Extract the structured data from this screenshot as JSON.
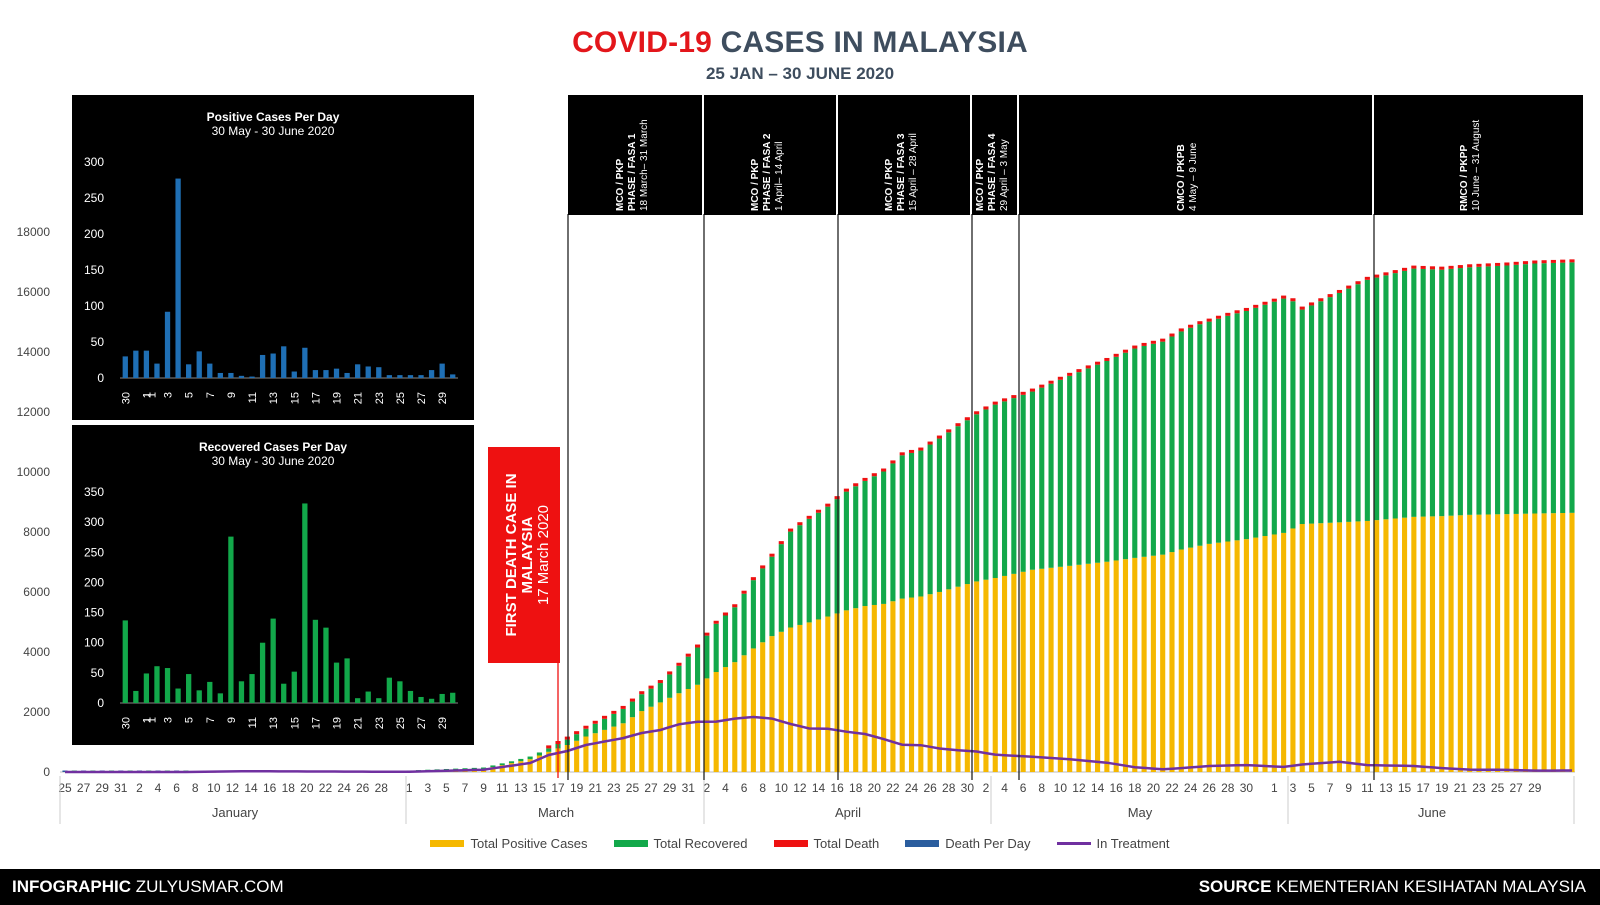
{
  "title": {
    "part1": "COVID-19",
    "part2": " CASES IN MALAYSIA",
    "subtitle": "25 JAN – 30 JUNE 2020"
  },
  "colors": {
    "positive": "#f5b800",
    "recovered": "#12a84a",
    "death": "#ee1111",
    "death_per_day": "#2a5d9e",
    "treatment": "#7030a0",
    "title_red": "#e3161b",
    "title_dark": "#3e4d5e"
  },
  "chart_data": {
    "type": "bar",
    "title": "COVID-19 CASES IN MALAYSIA",
    "subtitle": "25 JAN – 30 JUNE 2020",
    "ylim": [
      0,
      18000
    ],
    "y_ticks": [
      "0",
      "2000",
      "4000",
      "6000",
      "8000",
      "10000",
      "12000",
      "14000",
      "16000",
      "18000"
    ],
    "x_tick_labels": {
      "jan": [
        "25",
        "27",
        "29",
        "31",
        "2",
        "4",
        "6",
        "8",
        "10",
        "12",
        "14",
        "16",
        "18",
        "20",
        "22",
        "24",
        "26",
        "28"
      ],
      "mar": [
        "1",
        "3",
        "5",
        "7",
        "9",
        "11",
        "13",
        "15",
        "17",
        "19",
        "21",
        "23",
        "25",
        "27",
        "29",
        "31"
      ],
      "apr": [
        "2",
        "4",
        "6",
        "8",
        "10",
        "12",
        "14",
        "16",
        "18",
        "20",
        "22",
        "24",
        "26",
        "28",
        "30"
      ],
      "may": [
        "2",
        "4",
        "6",
        "8",
        "10",
        "12",
        "14",
        "16",
        "18",
        "20",
        "22",
        "24",
        "26",
        "28",
        "30"
      ],
      "jun": [
        "1",
        "3",
        "5",
        "7",
        "9",
        "11",
        "13",
        "15",
        "17",
        "19",
        "21",
        "23",
        "25",
        "27",
        "29"
      ]
    },
    "months": [
      "January",
      "March",
      "April",
      "May",
      "June"
    ],
    "series_names": [
      "Total Positive Cases",
      "Total Recovered",
      "Total Death",
      "Death Per Day",
      "In Treatment"
    ],
    "cumulative_keypoints": {
      "mar_start_index": 37,
      "positive": [
        [
          0,
          0
        ],
        [
          13,
          0
        ],
        [
          19,
          25
        ],
        [
          37,
          29
        ],
        [
          45,
          100
        ],
        [
          50,
          428
        ],
        [
          52,
          673
        ],
        [
          54,
          900
        ],
        [
          56,
          1183
        ],
        [
          60,
          1624
        ],
        [
          62,
          2031
        ],
        [
          64,
          2320
        ],
        [
          66,
          2626
        ],
        [
          68,
          2908
        ],
        [
          70,
          3333
        ],
        [
          72,
          3662
        ],
        [
          74,
          4119
        ],
        [
          76,
          4530
        ],
        [
          78,
          4817
        ],
        [
          80,
          4987
        ],
        [
          82,
          5182
        ],
        [
          84,
          5389
        ],
        [
          86,
          5532
        ],
        [
          88,
          5603
        ],
        [
          90,
          5780
        ],
        [
          92,
          5851
        ],
        [
          94,
          6002
        ],
        [
          96,
          6176
        ],
        [
          98,
          6353
        ],
        [
          100,
          6467
        ],
        [
          104,
          6742
        ],
        [
          108,
          6872
        ],
        [
          112,
          7009
        ],
        [
          115,
          7137
        ],
        [
          118,
          7245
        ],
        [
          120,
          7417
        ],
        [
          123,
          7604
        ],
        [
          127,
          7762
        ],
        [
          131,
          7970
        ],
        [
          133,
          8266
        ],
        [
          137,
          8322
        ],
        [
          140,
          8369
        ],
        [
          145,
          8505
        ],
        [
          148,
          8529
        ],
        [
          151,
          8572
        ],
        [
          155,
          8596
        ],
        [
          158,
          8616
        ],
        [
          162,
          8639
        ]
      ],
      "recovered": [
        [
          0,
          0
        ],
        [
          19,
          0
        ],
        [
          37,
          22
        ],
        [
          48,
          60
        ],
        [
          52,
          114
        ],
        [
          54,
          180
        ],
        [
          56,
          259
        ],
        [
          60,
          479
        ],
        [
          64,
          645
        ],
        [
          66,
          915
        ],
        [
          68,
          1241
        ],
        [
          70,
          1608
        ],
        [
          72,
          1830
        ],
        [
          74,
          2276
        ],
        [
          76,
          2647
        ],
        [
          78,
          3197
        ],
        [
          80,
          3452
        ],
        [
          82,
          3663
        ],
        [
          84,
          3957
        ],
        [
          86,
          4171
        ],
        [
          88,
          4413
        ],
        [
          90,
          4776
        ],
        [
          92,
          4864
        ],
        [
          94,
          5113
        ],
        [
          96,
          5351
        ],
        [
          98,
          5571
        ],
        [
          100,
          5779
        ],
        [
          104,
          5939
        ],
        [
          108,
          6333
        ],
        [
          112,
          6692
        ],
        [
          115,
          6978
        ],
        [
          118,
          7243
        ],
        [
          120,
          7336
        ],
        [
          123,
          7409
        ],
        [
          127,
          7635
        ],
        [
          131,
          8000
        ],
        [
          133,
          7148
        ],
        [
          137,
          7646
        ],
        [
          140,
          8036
        ],
        [
          145,
          8275
        ],
        [
          148,
          8216
        ],
        [
          151,
          8252
        ],
        [
          155,
          8288
        ],
        [
          158,
          8334
        ],
        [
          162,
          8349
        ]
      ],
      "deaths": [
        [
          0,
          0
        ],
        [
          51,
          0
        ],
        [
          52,
          2
        ],
        [
          54,
          3
        ],
        [
          56,
          10
        ],
        [
          60,
          15
        ],
        [
          64,
          24
        ],
        [
          66,
          30
        ],
        [
          68,
          40
        ],
        [
          70,
          45
        ],
        [
          72,
          57
        ],
        [
          74,
          64
        ],
        [
          76,
          71
        ],
        [
          78,
          79
        ],
        [
          80,
          84
        ],
        [
          84,
          88
        ],
        [
          88,
          92
        ],
        [
          92,
          95
        ],
        [
          96,
          100
        ],
        [
          100,
          103
        ],
        [
          104,
          105
        ],
        [
          108,
          108
        ],
        [
          112,
          114
        ],
        [
          115,
          115
        ],
        [
          120,
          115
        ],
        [
          127,
          115
        ],
        [
          133,
          116
        ],
        [
          137,
          117
        ],
        [
          140,
          119
        ],
        [
          145,
          119
        ],
        [
          148,
          121
        ],
        [
          151,
          121
        ],
        [
          155,
          121
        ],
        [
          158,
          121
        ],
        [
          162,
          121
        ]
      ],
      "in_treatment": [
        [
          0,
          0
        ],
        [
          13,
          0
        ],
        [
          19,
          25
        ],
        [
          37,
          7
        ],
        [
          45,
          78
        ],
        [
          50,
          300
        ],
        [
          52,
          565
        ],
        [
          54,
          700
        ],
        [
          56,
          900
        ],
        [
          60,
          1130
        ],
        [
          62,
          1300
        ],
        [
          64,
          1400
        ],
        [
          66,
          1590
        ],
        [
          68,
          1676
        ],
        [
          70,
          1680
        ],
        [
          72,
          1780
        ],
        [
          74,
          1833
        ],
        [
          76,
          1781
        ],
        [
          78,
          1600
        ],
        [
          80,
          1451
        ],
        [
          82,
          1440
        ],
        [
          84,
          1344
        ],
        [
          86,
          1266
        ],
        [
          88,
          1098
        ],
        [
          90,
          909
        ],
        [
          92,
          892
        ],
        [
          94,
          785
        ],
        [
          96,
          725
        ],
        [
          98,
          682
        ],
        [
          100,
          580
        ],
        [
          104,
          506
        ],
        [
          108,
          426
        ],
        [
          112,
          309
        ],
        [
          115,
          160
        ],
        [
          118,
          90
        ],
        [
          120,
          130
        ],
        [
          123,
          200
        ],
        [
          127,
          230
        ],
        [
          131,
          170
        ],
        [
          133,
          250
        ],
        [
          137,
          340
        ],
        [
          140,
          230
        ],
        [
          145,
          200
        ],
        [
          148,
          130
        ],
        [
          151,
          80
        ],
        [
          155,
          70
        ],
        [
          158,
          45
        ],
        [
          162,
          50
        ]
      ]
    },
    "insets": [
      {
        "title": "Positive Cases Per Day",
        "subtitle": "30 May - 30 June 2020",
        "ylim": [
          0,
          300
        ],
        "y_ticks": [
          "0",
          "50",
          "100",
          "150",
          "200",
          "250",
          "300"
        ],
        "x_labels": [
          "30",
          "1",
          "3",
          "5",
          "7",
          "9",
          "11",
          "13",
          "15",
          "17",
          "19",
          "21",
          "23",
          "25",
          "27",
          "29"
        ],
        "x_extra_labels": [
          "1",
          "1"
        ],
        "values": [
          30,
          38,
          38,
          20,
          92,
          277,
          19,
          37,
          20,
          7,
          7,
          3,
          2,
          32,
          34,
          44,
          9,
          42,
          11,
          11,
          13,
          7,
          19,
          16,
          15,
          4,
          4,
          4,
          4,
          11,
          20,
          5
        ],
        "color": "#1f6fb4"
      },
      {
        "title": "Recovered Cases Per Day",
        "subtitle": "30 May - 30 June 2020",
        "ylim": [
          0,
          350
        ],
        "y_ticks": [
          "0",
          "50",
          "100",
          "150",
          "200",
          "250",
          "300",
          "350"
        ],
        "x_labels": [
          "30",
          "1",
          "3",
          "5",
          "7",
          "9",
          "11",
          "13",
          "15",
          "17",
          "19",
          "21",
          "23",
          "25",
          "27",
          "29"
        ],
        "x_extra_labels": [
          "1",
          "1"
        ],
        "values": [
          137,
          20,
          49,
          61,
          58,
          24,
          48,
          21,
          35,
          16,
          276,
          36,
          48,
          100,
          140,
          32,
          52,
          331,
          138,
          125,
          67,
          74,
          8,
          19,
          8,
          42,
          36,
          20,
          10,
          7,
          15,
          17
        ],
        "color": "#12a84a"
      }
    ],
    "phases": [
      {
        "l1": "MCO / PKP",
        "l2": "PHASE / FASA 1",
        "l3": "18 March– 31 March"
      },
      {
        "l1": "MCO / PKP",
        "l2": "PHASE / FASA 2",
        "l3": "1 April– 14 April"
      },
      {
        "l1": "MCO / PKP",
        "l2": "PHASE / FASA 3",
        "l3": "15 April – 28 April"
      },
      {
        "l1": "MCO / PKP",
        "l2": "PHASE / FASA 4",
        "l3": "29 April – 3 May"
      },
      {
        "l1": "CMCO / PKPB",
        "l2": "",
        "l3": "4 May – 9 June"
      },
      {
        "l1": "RMCO / PKPP",
        "l2": "",
        "l3": "10 June – 31 August"
      }
    ],
    "first_death": {
      "l1": "FIRST DEATH CASE IN",
      "l2": "MALAYSIA",
      "l3": "17 March 2020"
    }
  },
  "legend": [
    "Total Positive Cases",
    "Total Recovered",
    "Total Death",
    "Death Per Day",
    "In Treatment"
  ],
  "footer": {
    "left_bold": "INFOGRAPHIC",
    "left_rest": " ZULYUSMAR.COM",
    "right_bold": "SOURCE",
    "right_rest": " KEMENTERIAN KESIHATAN MALAYSIA"
  }
}
